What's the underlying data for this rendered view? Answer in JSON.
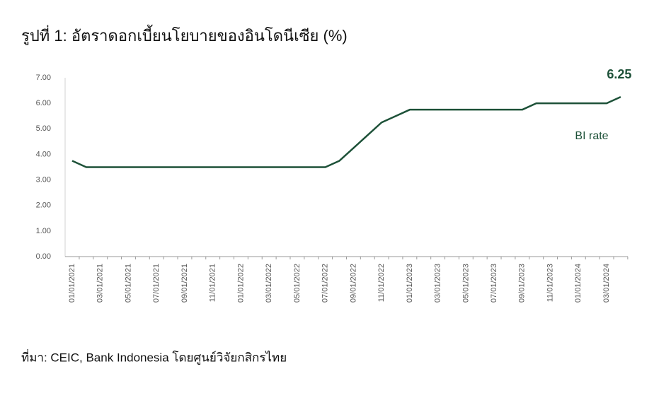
{
  "chart_data": {
    "type": "line",
    "title": "รูปที่ 1: อัตราดอกเบี้ยนโยบายของอินโดนีเซีย (%)",
    "source": "ที่มา: CEIC, Bank Indonesia โดยศูนย์วิจัยกสิกรไทย",
    "categories": [
      "01/01/2021",
      null,
      "03/01/2021",
      null,
      "05/01/2021",
      null,
      "07/01/2021",
      null,
      "09/01/2021",
      null,
      "11/01/2021",
      null,
      "01/01/2022",
      null,
      "03/01/2022",
      null,
      "05/01/2022",
      null,
      "07/01/2022",
      null,
      "09/01/2022",
      null,
      "11/01/2022",
      null,
      "01/01/2023",
      null,
      "03/01/2023",
      null,
      "05/01/2023",
      null,
      "07/01/2023",
      null,
      "09/01/2023",
      null,
      "11/01/2023",
      null,
      "01/01/2024",
      null,
      "03/01/2024",
      null
    ],
    "series": [
      {
        "name": "BI rate",
        "color": "#1d5138",
        "values": [
          3.75,
          3.5,
          3.5,
          3.5,
          3.5,
          3.5,
          3.5,
          3.5,
          3.5,
          3.5,
          3.5,
          3.5,
          3.5,
          3.5,
          3.5,
          3.5,
          3.5,
          3.5,
          3.5,
          3.75,
          4.25,
          4.75,
          5.25,
          5.5,
          5.75,
          5.75,
          5.75,
          5.75,
          5.75,
          5.75,
          5.75,
          5.75,
          5.75,
          6.0,
          6.0,
          6.0,
          6.0,
          6.0,
          6.0,
          6.25
        ]
      }
    ],
    "ylim": [
      0,
      7
    ],
    "yticks": [
      {
        "value": 0,
        "label": "0.00"
      },
      {
        "value": 1,
        "label": "1.00"
      },
      {
        "value": 2,
        "label": "2.00"
      },
      {
        "value": 3,
        "label": "3.00"
      },
      {
        "value": 4,
        "label": "4.00"
      },
      {
        "value": 5,
        "label": "5.00"
      },
      {
        "value": 6,
        "label": "6.00"
      },
      {
        "value": 7,
        "label": "7.00"
      }
    ],
    "grid": false
  }
}
